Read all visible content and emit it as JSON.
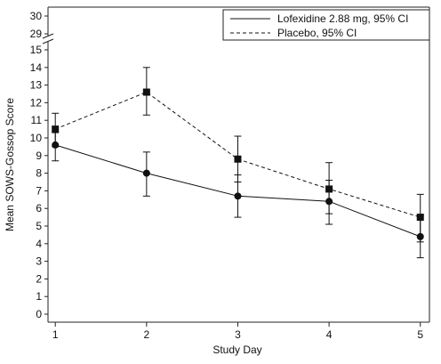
{
  "chart_data": {
    "type": "line",
    "xlabel": "Study Day",
    "ylabel": "Mean SOWS-Gossop Score",
    "x": [
      1,
      2,
      3,
      4,
      5
    ],
    "x_tick_labels": [
      "1",
      "2",
      "3",
      "4",
      "5"
    ],
    "y_ticks_lower": [
      0,
      1,
      2,
      3,
      4,
      5,
      6,
      7,
      8,
      9,
      10,
      11,
      12,
      13,
      14,
      15
    ],
    "y_ticks_upper": [
      29,
      30
    ],
    "ylim": [
      0,
      30
    ],
    "axis_break": [
      15,
      29
    ],
    "grid": false,
    "legend_position": "top-right",
    "series": [
      {
        "name": "Lofexidine 2.88 mg, 95% CI",
        "marker": "circle",
        "line_style": "solid",
        "values": [
          9.6,
          8.0,
          6.7,
          6.4,
          4.4
        ],
        "ci_low": [
          8.7,
          6.7,
          5.5,
          5.1,
          3.2
        ],
        "ci_high": [
          10.3,
          9.2,
          7.9,
          7.6,
          5.6
        ]
      },
      {
        "name": "Placebo, 95% CI",
        "marker": "square",
        "line_style": "dashed",
        "values": [
          10.5,
          12.6,
          8.8,
          7.1,
          5.5
        ],
        "ci_low": [
          9.5,
          11.3,
          7.5,
          5.7,
          4.1
        ],
        "ci_high": [
          11.4,
          14.0,
          10.1,
          8.6,
          6.8
        ]
      }
    ]
  }
}
